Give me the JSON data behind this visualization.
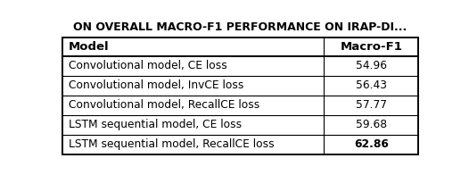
{
  "title": "ON OVERALL MACRO-F1 PERFORMANCE ON IRAP-DI...",
  "col_headers": [
    "Model",
    "Macro-F1"
  ],
  "rows": [
    [
      "Convolutional model, CE loss",
      "54.96"
    ],
    [
      "Convolutional model, InvCE loss",
      "56.43"
    ],
    [
      "Convolutional model, RecallCE loss",
      "57.77"
    ],
    [
      "LSTM sequential model, CE loss",
      "59.68"
    ],
    [
      "LSTM sequential model, RecallCE loss",
      "62.86"
    ]
  ],
  "last_row_bold": true,
  "bg_color": "#ffffff",
  "text_color": "#000000",
  "header_fontsize": 9.5,
  "cell_fontsize": 8.8,
  "title_fontsize": 9.0,
  "col_split": 0.735,
  "fig_width": 5.26,
  "fig_height": 1.96,
  "dpi": 100,
  "title_text": "ON OVERALL MACRO-F1 PERFORMANCE ON IRAP-DI..."
}
